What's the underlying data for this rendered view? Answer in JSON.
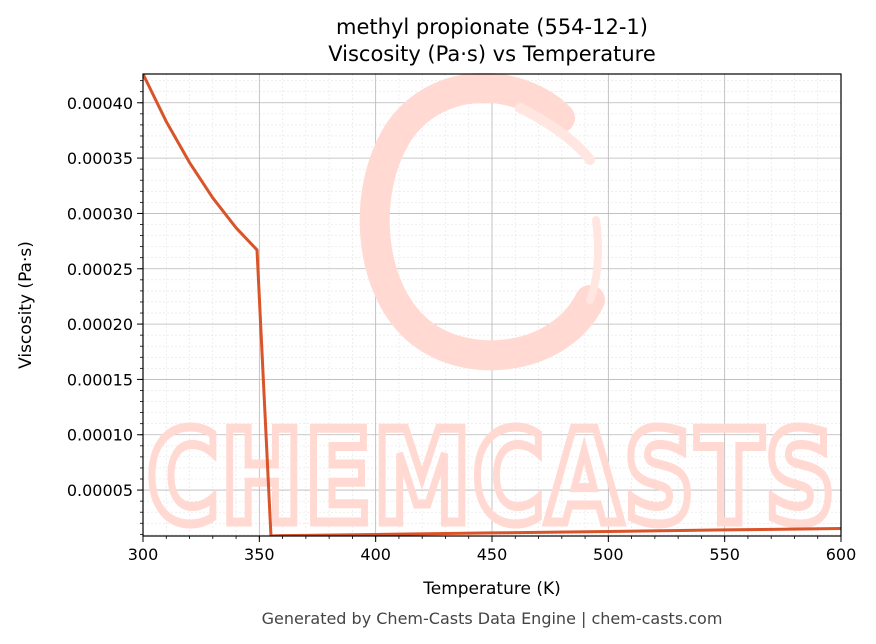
{
  "chart_data": {
    "type": "line",
    "title": "methyl propionate (554-12-1)",
    "subtitle": "Viscosity (Pa·s) vs Temperature",
    "xlabel": "Temperature (K)",
    "ylabel": "Viscosity (Pa·s)",
    "xlim": [
      300,
      600
    ],
    "ylim": [
      8.5e-06,
      0.000426
    ],
    "x_ticks": [
      300,
      350,
      400,
      450,
      500,
      550,
      600
    ],
    "x_tick_labels": [
      "300",
      "350",
      "400",
      "450",
      "500",
      "550",
      "600"
    ],
    "y_ticks": [
      5e-05,
      0.0001,
      0.00015,
      0.0002,
      0.00025,
      0.0003,
      0.00035,
      0.0004
    ],
    "y_tick_labels": [
      "0.00005",
      "0.00010",
      "0.00015",
      "0.00020",
      "0.00025",
      "0.00030",
      "0.00035",
      "0.00040"
    ],
    "grid": true,
    "line_color": "#d95428",
    "series": [
      {
        "x": [
          300,
          310,
          320,
          330,
          340,
          349,
          355,
          360,
          400,
          450,
          500,
          550,
          600
        ],
        "values": [
          0.000426,
          0.000383,
          0.000346,
          0.000314,
          0.000287,
          0.000267,
          8.5e-06,
          8.8e-06,
          9.9e-06,
          1.13e-05,
          1.26e-05,
          1.4e-05,
          1.53e-05
        ]
      }
    ]
  },
  "watermark": {
    "text": "CHEMCASTS",
    "color": "#ffd9d2"
  },
  "footer": "Generated by Chem-Casts Data Engine | chem-casts.com"
}
